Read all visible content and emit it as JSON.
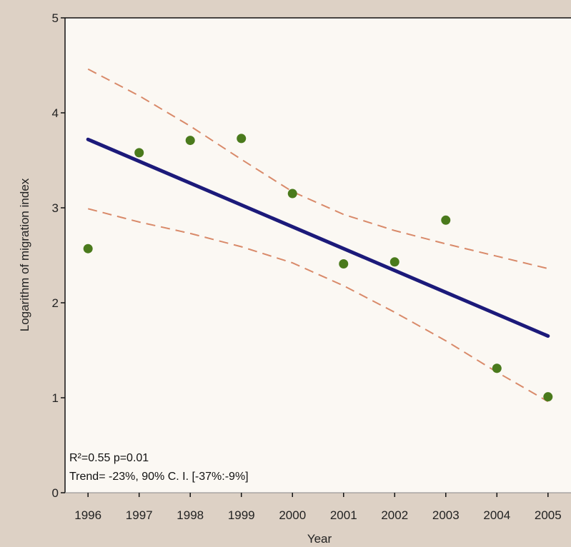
{
  "chart_data": {
    "type": "scatter",
    "title": "",
    "xlabel": "Year",
    "ylabel": "Logarithm of migration index",
    "xlim": [
      1995.55,
      2005.45
    ],
    "ylim": [
      0,
      5
    ],
    "x_ticks": [
      "1996",
      "1997",
      "1998",
      "1999",
      "2000",
      "2001",
      "2002",
      "2003",
      "2004",
      "2005"
    ],
    "y_ticks": [
      "0",
      "1",
      "2",
      "3",
      "4",
      "5"
    ],
    "grid": false,
    "legend": "none",
    "points": {
      "x": [
        1996,
        1997,
        1998,
        1999,
        2000,
        2001,
        2002,
        2003,
        2004,
        2005
      ],
      "y": [
        2.57,
        3.58,
        3.71,
        3.73,
        3.15,
        2.41,
        2.43,
        2.87,
        1.31,
        1.01
      ],
      "color": "#4a7a1c"
    },
    "trend_line": {
      "x": [
        1996,
        2005
      ],
      "y": [
        3.72,
        1.65
      ],
      "color": "#1c1a7a"
    },
    "ci_upper": {
      "x": [
        1996,
        1997,
        1998,
        1999,
        2000,
        2001,
        2002,
        2003,
        2004,
        2005
      ],
      "y": [
        4.46,
        4.18,
        3.86,
        3.51,
        3.17,
        2.93,
        2.76,
        2.62,
        2.49,
        2.36
      ],
      "color": "#d98a6a"
    },
    "ci_lower": {
      "x": [
        1996,
        1997,
        1998,
        1999,
        2000,
        2001,
        2002,
        2003,
        2004,
        2005
      ],
      "y": [
        2.99,
        2.85,
        2.73,
        2.59,
        2.42,
        2.18,
        1.9,
        1.6,
        1.27,
        0.96
      ],
      "color": "#d98a6a"
    },
    "annotations": [
      "R²=0.55 p=0.01",
      "Trend= -23%, 90% C. I. [-37%:-9%]"
    ],
    "colors": {
      "page_background": "#ddd1c5",
      "plot_background": "#fbf8f3",
      "axis": "#111111"
    }
  }
}
